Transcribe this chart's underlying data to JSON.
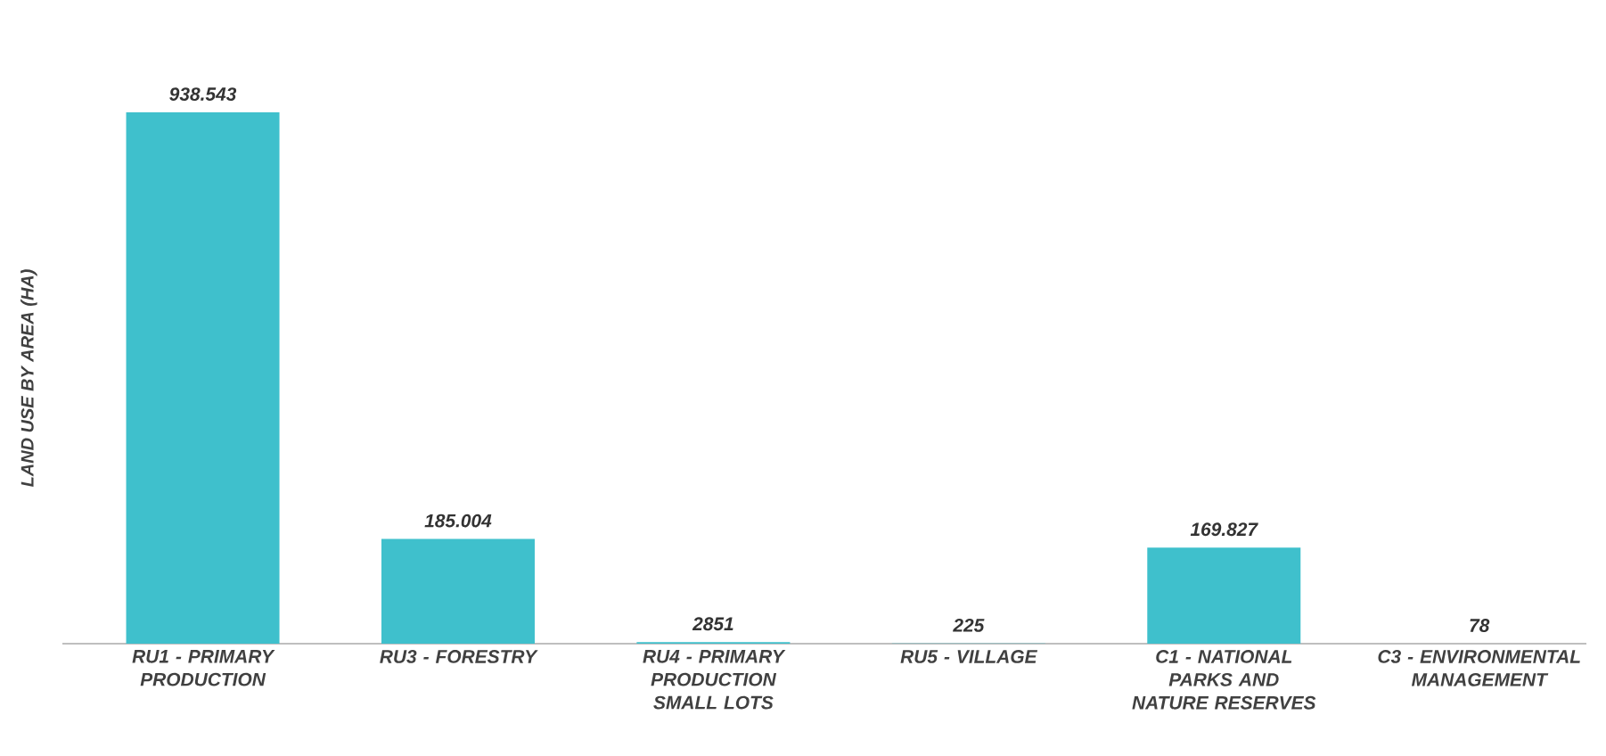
{
  "chart_data": {
    "type": "bar",
    "ylabel": "LAND USE BY AREA (HA)",
    "categories": [
      "RU1 - PRIMARY PRODUCTION",
      "RU3 - FORESTRY",
      "RU4 - PRIMARY PRODUCTION SMALL LOTS",
      "RU5 - VILLAGE",
      "C1 - NATIONAL PARKS AND NATURE RESERVES",
      "C3 - ENVIRONMENTAL MANAGEMENT"
    ],
    "values": [
      938543,
      185004,
      2851,
      225,
      169827,
      78
    ],
    "value_labels": [
      "938.543",
      "185.004",
      "2851",
      "225",
      "169.827",
      "78"
    ],
    "color": "#3fc0cc",
    "grid": false
  }
}
